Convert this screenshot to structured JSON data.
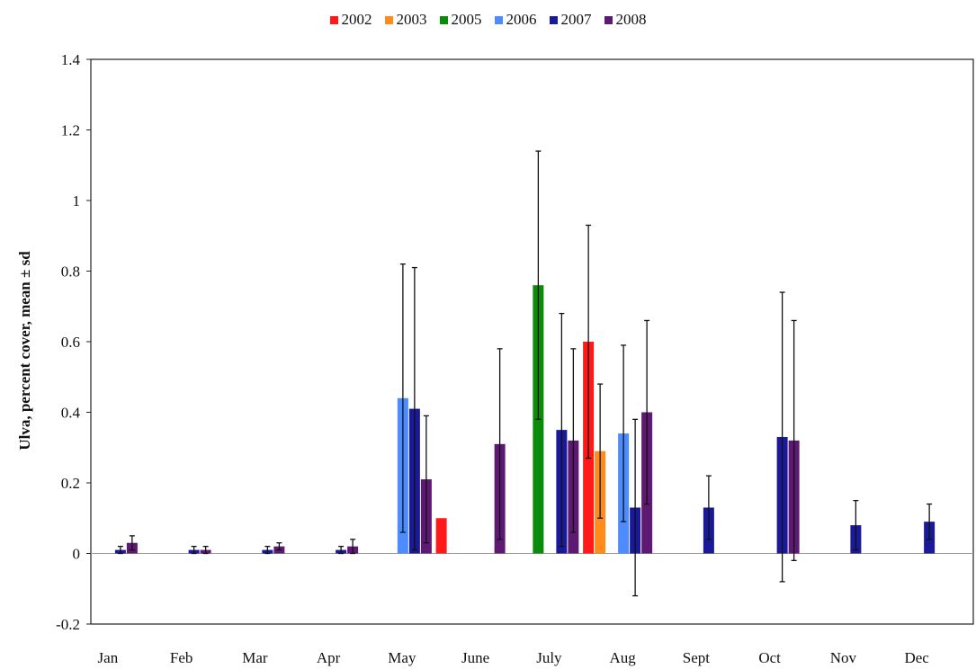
{
  "chart_data": {
    "type": "bar",
    "title": "",
    "xlabel": "",
    "ylabel": "Ulva, percent cover, mean ± sd",
    "ylim": [
      -0.2,
      1.4
    ],
    "yticks": [
      "-0.2",
      "0",
      "0.2",
      "0.4",
      "0.6",
      "0.8",
      "1",
      "1.2",
      "1.4"
    ],
    "categories": [
      "Jan",
      "Feb",
      "Mar",
      "Apr",
      "May",
      "June",
      "July",
      "Aug",
      "Sept",
      "Oct",
      "Nov",
      "Dec"
    ],
    "legend_position": "top-center",
    "grid": false,
    "series": [
      {
        "name": "2002",
        "color": "#ff1a1a",
        "values": [
          null,
          null,
          null,
          null,
          null,
          0.1,
          null,
          0.6,
          null,
          null,
          null,
          null
        ],
        "sd": [
          null,
          null,
          null,
          null,
          null,
          0,
          null,
          0.33,
          null,
          null,
          null,
          null
        ]
      },
      {
        "name": "2003",
        "color": "#ff8c1a",
        "values": [
          null,
          null,
          null,
          null,
          null,
          null,
          null,
          0.29,
          null,
          null,
          null,
          null
        ],
        "sd": [
          null,
          null,
          null,
          null,
          null,
          null,
          null,
          0.19,
          null,
          null,
          null,
          null
        ]
      },
      {
        "name": "2005",
        "color": "#0a8c0a",
        "values": [
          null,
          null,
          null,
          null,
          null,
          null,
          0.76,
          null,
          null,
          null,
          null,
          null
        ],
        "sd": [
          null,
          null,
          null,
          null,
          null,
          null,
          0.38,
          null,
          null,
          null,
          null,
          null
        ]
      },
      {
        "name": "2006",
        "color": "#4d8cff",
        "values": [
          null,
          null,
          null,
          null,
          0.44,
          null,
          null,
          0.34,
          null,
          null,
          null,
          null
        ],
        "sd": [
          null,
          null,
          null,
          null,
          0.38,
          null,
          null,
          0.25,
          null,
          null,
          null,
          null
        ]
      },
      {
        "name": "2007",
        "color": "#1a1a99",
        "values": [
          0.01,
          0.01,
          0.01,
          0.01,
          0.41,
          null,
          0.35,
          0.13,
          0.13,
          0.33,
          0.08,
          0.09
        ],
        "sd": [
          0.01,
          0.01,
          0.01,
          0.01,
          0.4,
          null,
          0.33,
          0.25,
          0.09,
          0.41,
          0.07,
          0.05
        ]
      },
      {
        "name": "2008",
        "color": "#5e1a73",
        "values": [
          0.03,
          0.01,
          0.02,
          0.02,
          0.21,
          0.31,
          0.32,
          0.4,
          null,
          0.32,
          null,
          null
        ],
        "sd": [
          0.02,
          0.01,
          0.01,
          0.02,
          0.18,
          0.27,
          0.26,
          0.26,
          null,
          0.34,
          null,
          null
        ]
      }
    ]
  }
}
